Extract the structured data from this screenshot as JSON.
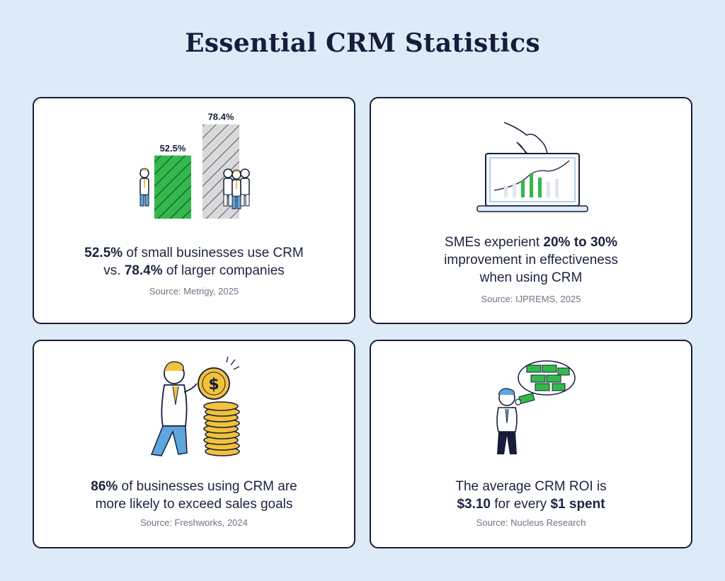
{
  "title": "Essential CRM Statistics",
  "colors": {
    "accent_green": "#33b94a",
    "gold": "#f2c23a",
    "navy": "#161d3b",
    "blue": "#5ea6dd"
  },
  "cards": [
    {
      "icon": "bar-chart-people-illustration",
      "stat_bold": "52.5%",
      "stat_rest": " of small businesses use CRM",
      "stat_line2_pre": "vs. ",
      "stat_bold2": "78.4%",
      "stat_line2_post": " of larger companies",
      "source": "Source: Metrigy, 2025",
      "chart_data": {
        "type": "bar",
        "categories": [
          "",
          ""
        ],
        "values": [
          52.5,
          78.4
        ],
        "labels": [
          "52.5%",
          "78.4%"
        ],
        "ylim": [
          0,
          100
        ]
      }
    },
    {
      "icon": "laptop-chart-illustration",
      "stat_pre": "SMEs experient ",
      "stat_bold": "20% to 30%",
      "stat_line2": "improvement in effectiveness",
      "stat_line3": "when using CRM",
      "source": "Source: IJPREMS, 2025"
    },
    {
      "icon": "coin-stack-illustration",
      "stat_bold": "86%",
      "stat_rest": " of businesses using CRM are",
      "stat_line2": "more likely to exceed sales goals",
      "source": "Source: Freshworks, 2024"
    },
    {
      "icon": "money-thought-illustration",
      "stat_line1": "The average CRM ROI is",
      "stat_bold": "$3.10",
      "stat_mid": " for every ",
      "stat_bold2": "$1 spent",
      "source": "Source: Nucleus Research"
    }
  ]
}
